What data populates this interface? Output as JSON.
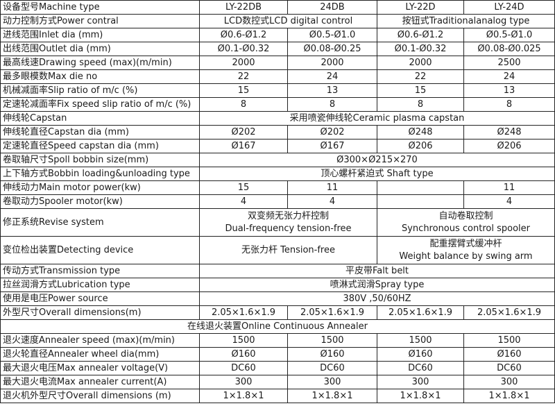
{
  "table": {
    "rows": [
      {
        "cells": [
          {
            "t": "设备型号Machine type"
          },
          {
            "t": "LY-22DB"
          },
          {
            "t": "24DB"
          },
          {
            "t": "LY-22D"
          },
          {
            "t": "LY-24D"
          }
        ]
      },
      {
        "cells": [
          {
            "t": "动力控制方式Power contral"
          },
          {
            "t": "LCD数控式LCD digital control",
            "span": 2
          },
          {
            "t": "按钮式Traditionalanalog type",
            "span": 2
          }
        ]
      },
      {
        "cells": [
          {
            "t": "进线范围Inlet dia (mm)"
          },
          {
            "t": "Ø0.6-Ø1.2"
          },
          {
            "t": "Ø0.5-Ø1.0"
          },
          {
            "t": "Ø0.6-Ø1.2"
          },
          {
            "t": "Ø0.5-Ø1.0"
          }
        ]
      },
      {
        "cells": [
          {
            "t": "出线范围Outlet dia (mm)"
          },
          {
            "t": "Ø0.1-Ø0.32"
          },
          {
            "t": "Ø0.08-Ø0.25"
          },
          {
            "t": "Ø0.1-Ø0.32"
          },
          {
            "t": "Ø0.08-Ø0.025"
          }
        ]
      },
      {
        "cells": [
          {
            "t": "最高线速Drawing speed (max)(m/min)"
          },
          {
            "t": "2000"
          },
          {
            "t": "2000"
          },
          {
            "t": "2000"
          },
          {
            "t": "2500"
          }
        ]
      },
      {
        "cells": [
          {
            "t": "最多眼模数Max die no"
          },
          {
            "t": "22"
          },
          {
            "t": "24"
          },
          {
            "t": "22"
          },
          {
            "t": "24"
          }
        ]
      },
      {
        "cells": [
          {
            "t": "机械减面率Slip ratio of m/c (%)"
          },
          {
            "t": "15"
          },
          {
            "t": "13"
          },
          {
            "t": "15"
          },
          {
            "t": "13"
          }
        ]
      },
      {
        "cells": [
          {
            "t": "定速轮减面率Fix speed slip ratio of m/c (%)"
          },
          {
            "t": "8"
          },
          {
            "t": "8"
          },
          {
            "t": "8"
          },
          {
            "t": "8"
          }
        ]
      },
      {
        "cells": [
          {
            "t": "伸线轮Capstan"
          },
          {
            "t": "采用喷瓷伸线轮Ceramic plasma capstan",
            "span": 4
          }
        ]
      },
      {
        "cells": [
          {
            "t": "伸线轮直径Capstan dia (mm)"
          },
          {
            "t": "Ø202"
          },
          {
            "t": "Ø202"
          },
          {
            "t": "Ø248"
          },
          {
            "t": "Ø248"
          }
        ]
      },
      {
        "cells": [
          {
            "t": "定速轮直径Speed capstan dia (mm)"
          },
          {
            "t": "Ø167"
          },
          {
            "t": "Ø167"
          },
          {
            "t": "Ø206"
          },
          {
            "t": "Ø206"
          }
        ]
      },
      {
        "cells": [
          {
            "t": "卷取轴尺寸Spoll bobbin size(mm)"
          },
          {
            "t": "Ø300×Ø215×270",
            "span": 4
          }
        ]
      },
      {
        "cells": [
          {
            "t": "上下轴方式Bobbin loading&unloading type"
          },
          {
            "t": "顶心螺杆紧迫式 Shaft type",
            "span": 4
          }
        ]
      },
      {
        "cells": [
          {
            "t": "伸线动力Main motor power(kw)"
          },
          {
            "t": "15"
          },
          {
            "t": "11"
          },
          {
            "t": ""
          },
          {
            "t": "11"
          }
        ]
      },
      {
        "cells": [
          {
            "t": "卷取动力Spooler motor(kw)"
          },
          {
            "t": "4"
          },
          {
            "t": "4"
          },
          {
            "t": ""
          },
          {
            "t": "4"
          }
        ]
      },
      {
        "tall": true,
        "cells": [
          {
            "t": "修正系统Revise system"
          },
          {
            "lines": [
              "双变频无张力杆控制",
              "Dual-frequency tension-free"
            ],
            "span": 2
          },
          {
            "lines": [
              "自动卷取控制",
              "Synchronous control spooler"
            ],
            "span": 2
          }
        ]
      },
      {
        "tall": true,
        "cells": [
          {
            "t": "变位检出装置Detecting device"
          },
          {
            "t": "无张力杆 Tension-free",
            "span": 2
          },
          {
            "lines": [
              "配重摆臂式缓冲杆",
              "Weight balance by swing arm"
            ],
            "span": 2
          }
        ]
      },
      {
        "cells": [
          {
            "t": "传动方式Transmission type"
          },
          {
            "t": "平皮带Falt belt",
            "span": 4
          }
        ]
      },
      {
        "cells": [
          {
            "t": "拉丝润滑方式Lubrication type"
          },
          {
            "t": "喷淋式润滑Spray type",
            "span": 4
          }
        ]
      },
      {
        "cells": [
          {
            "t": "使用是电压Power source"
          },
          {
            "t": "380V ,50/60HZ",
            "span": 4
          }
        ]
      },
      {
        "cells": [
          {
            "t": "外型尺寸Overall dimensions(m)"
          },
          {
            "t": "2.05×1.6×1.9"
          },
          {
            "t": "2.05×1.6×1.9"
          },
          {
            "t": "2.05×1.6×1.9"
          },
          {
            "t": "2.05×1.6×1.9"
          }
        ]
      },
      {
        "cells": [
          {
            "t": "在线退火装置Online Continuous Annealer",
            "span": 5,
            "center": true
          }
        ]
      },
      {
        "cells": [
          {
            "t": "退火速度Annealer speed (max)(m/min)"
          },
          {
            "t": "1500"
          },
          {
            "t": "1500"
          },
          {
            "t": "1500"
          },
          {
            "t": "1500"
          }
        ]
      },
      {
        "cells": [
          {
            "t": "退火轮直径Annealer wheel dia(mm)"
          },
          {
            "t": "Ø160"
          },
          {
            "t": "Ø160"
          },
          {
            "t": "Ø160"
          },
          {
            "t": "Ø160"
          }
        ]
      },
      {
        "cells": [
          {
            "t": "最大退火电压Max annealer voltage(V)"
          },
          {
            "t": "DC60"
          },
          {
            "t": "DC60"
          },
          {
            "t": "DC60"
          },
          {
            "t": "DC60"
          }
        ]
      },
      {
        "cells": [
          {
            "t": "最大退火电流Max annealer current(A)"
          },
          {
            "t": "300"
          },
          {
            "t": "300"
          },
          {
            "t": "300"
          },
          {
            "t": "300"
          }
        ]
      },
      {
        "cells": [
          {
            "t": "退火机外型尺寸Overall dimensions (m)"
          },
          {
            "t": "1×1.8×1"
          },
          {
            "t": "1×1.8×1"
          },
          {
            "t": "1×1.8×1"
          },
          {
            "t": "1×1.8×1"
          }
        ]
      }
    ]
  }
}
